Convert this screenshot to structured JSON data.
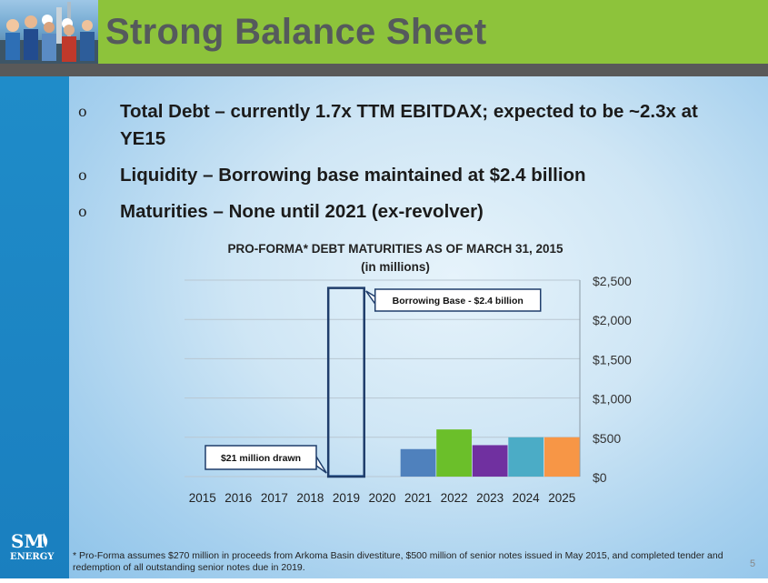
{
  "header": {
    "title": "Strong Balance Sheet",
    "accent_color": "#8dc33b",
    "photo_icon": "crew-photo-icon"
  },
  "bullets": [
    {
      "mark": "o",
      "text": "Total Debt – currently 1.7x TTM EBITDAX; expected to be ~2.3x at YE15"
    },
    {
      "mark": "o",
      "text": "Liquidity – Borrowing base maintained at $2.4 billion"
    },
    {
      "mark": "o",
      "text": "Maturities – None until 2021 (ex-revolver)"
    }
  ],
  "logo": {
    "line1": "SM",
    "line2": "ENERGY"
  },
  "chart_data": {
    "type": "bar",
    "title": "PRO-FORMA* DEBT MATURITIES AS OF MARCH 31, 2015",
    "subtitle": "(in millions)",
    "categories": [
      "2015",
      "2016",
      "2017",
      "2018",
      "2019",
      "2020",
      "2021",
      "2022",
      "2023",
      "2024",
      "2025"
    ],
    "values": [
      0,
      0,
      0,
      0,
      21,
      0,
      350,
      600,
      400,
      500,
      500
    ],
    "bar_colors": [
      "#4f81bd",
      "#4f81bd",
      "#4f81bd",
      "#4f81bd",
      "#4f81bd",
      "#4f81bd",
      "#4f81bd",
      "#6bbf2a",
      "#7030a0",
      "#4bacc6",
      "#f79646"
    ],
    "borrowing_base": {
      "category": "2019",
      "value": 2400
    },
    "ylim": [
      0,
      2500
    ],
    "yticks": [
      0,
      500,
      1000,
      1500,
      2000,
      2500
    ],
    "ytick_labels": [
      "$0",
      "$500",
      "$1,000",
      "$1,500",
      "$2,000",
      "$2,500"
    ],
    "y_axis_side": "right",
    "grid": true,
    "annotations": [
      {
        "text": "Borrowing Base - $2.4 billion",
        "target": "2019"
      },
      {
        "text": "$21 million drawn",
        "target": "2019"
      }
    ]
  },
  "footnote": "* Pro-Forma assumes $270 million in proceeds from Arkoma Basin divestiture, $500 million of senior notes issued in May 2015, and completed tender and redemption of all outstanding senior notes due in 2019.",
  "page_number": "5"
}
